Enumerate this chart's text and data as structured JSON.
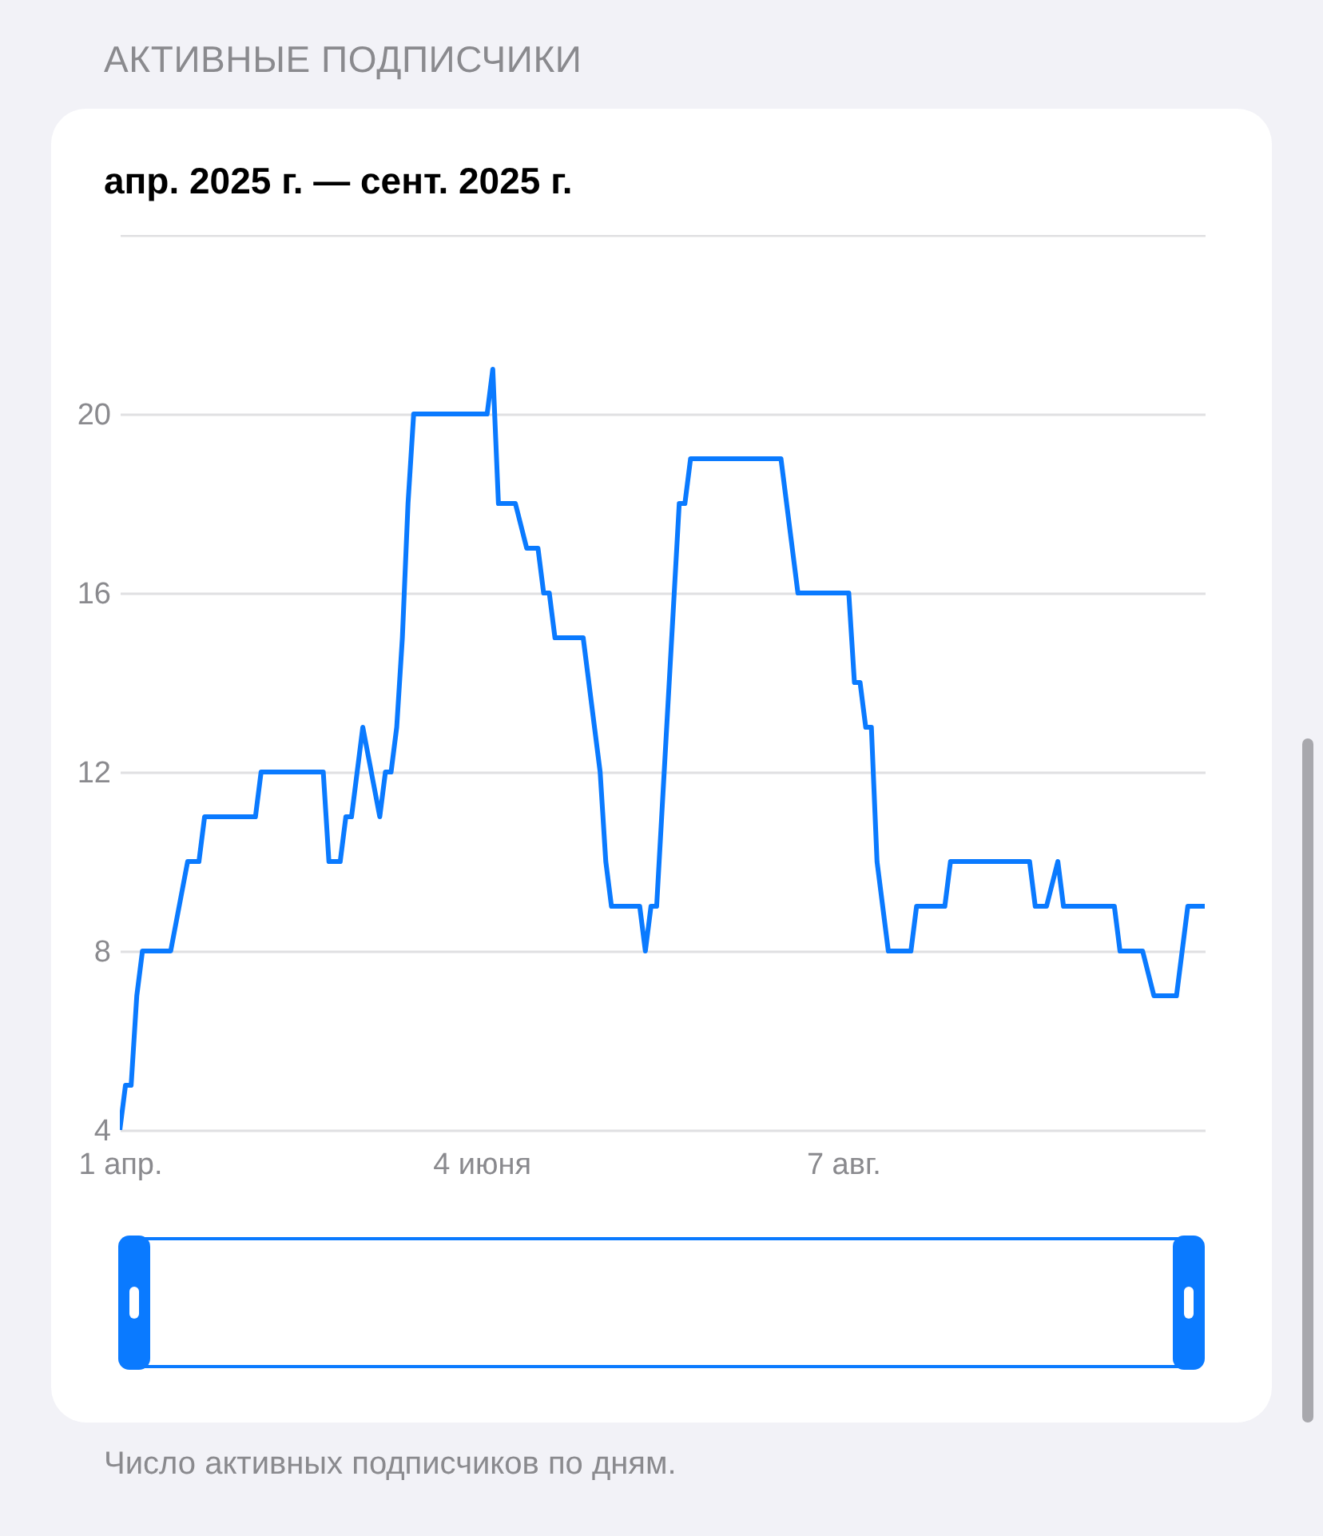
{
  "chart_data": {
    "type": "line",
    "title": "АКТИВНЫЕ ПОДПИСЧИКИ",
    "subtitle": "апр. 2025 г. — сент. 2025 г.",
    "annotations": [
      "Число активных подписчиков по дням."
    ],
    "x": [
      "2025-04-01",
      "2025-04-02",
      "2025-04-03",
      "2025-04-04",
      "2025-04-05",
      "2025-04-10",
      "2025-04-13",
      "2025-04-15",
      "2025-04-16",
      "2025-04-25",
      "2025-04-26",
      "2025-05-07",
      "2025-05-08",
      "2025-05-10",
      "2025-05-11",
      "2025-05-12",
      "2025-05-14",
      "2025-05-17",
      "2025-05-18",
      "2025-05-19",
      "2025-05-20",
      "2025-05-21",
      "2025-05-22",
      "2025-05-23",
      "2025-06-05",
      "2025-06-06",
      "2025-06-07",
      "2025-06-10",
      "2025-06-12",
      "2025-06-14",
      "2025-06-15",
      "2025-06-16",
      "2025-06-17",
      "2025-06-22",
      "2025-06-25",
      "2025-06-26",
      "2025-06-27",
      "2025-07-02",
      "2025-07-03",
      "2025-07-04",
      "2025-07-05",
      "2025-07-09",
      "2025-07-10",
      "2025-07-11",
      "2025-07-27",
      "2025-07-30",
      "2025-08-08",
      "2025-08-09",
      "2025-08-10",
      "2025-08-11",
      "2025-08-12",
      "2025-08-13",
      "2025-08-15",
      "2025-08-19",
      "2025-08-20",
      "2025-08-25",
      "2025-08-26",
      "2025-09-09",
      "2025-09-10",
      "2025-09-12",
      "2025-09-14",
      "2025-09-15",
      "2025-09-24",
      "2025-09-25",
      "2025-09-29",
      "2025-10-01",
      "2025-10-05",
      "2025-10-07",
      "2025-10-10"
    ],
    "series": [
      {
        "color": "#0a7aff",
        "values": [
          4,
          5,
          5,
          7,
          8,
          8,
          10,
          10,
          11,
          11,
          12,
          12,
          10,
          10,
          11,
          11,
          13,
          11,
          12,
          12,
          13,
          15,
          18,
          20,
          20,
          21,
          18,
          18,
          17,
          17,
          16,
          16,
          15,
          15,
          12,
          10,
          9,
          9,
          8,
          9,
          9,
          18,
          18,
          19,
          19,
          16,
          16,
          14,
          14,
          13,
          13,
          10,
          8,
          8,
          9,
          9,
          10,
          10,
          9,
          9,
          10,
          9,
          9,
          8,
          8,
          7,
          7,
          9,
          9
        ]
      }
    ],
    "xlim": [
      "2025-04-01",
      "2025-10-10"
    ],
    "xticks": [
      {
        "value": "2025-04-01",
        "label": "1 апр."
      },
      {
        "value": "2025-06-04",
        "label": "4 июня"
      },
      {
        "value": "2025-08-07",
        "label": "7 авг."
      }
    ],
    "ylim": [
      4,
      24
    ],
    "yticks": [
      4,
      8,
      12,
      16,
      20,
      {
        "value": 24,
        "label": null
      }
    ],
    "grid": "y",
    "marker": "none",
    "line_style": "solid"
  }
}
